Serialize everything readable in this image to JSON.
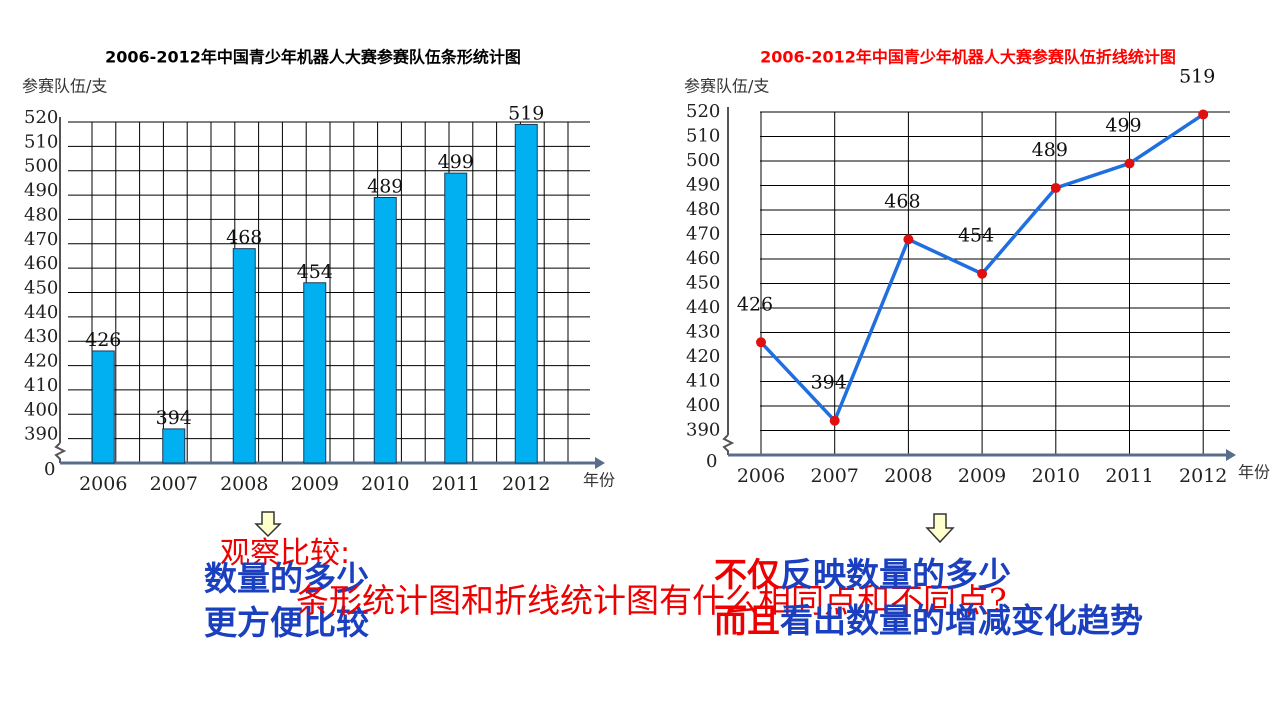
{
  "chart_data": [
    {
      "type": "bar",
      "title": "2006-2012年中国青少年机器人大赛参赛队伍条形统计图",
      "title_color": "#000000",
      "y_label": "参赛队伍/支",
      "x_label": "年份",
      "axis_break_label": "0",
      "categories": [
        "2006",
        "2007",
        "2008",
        "2009",
        "2010",
        "2011",
        "2012"
      ],
      "values": [
        426,
        394,
        468,
        454,
        489,
        499,
        519
      ],
      "color": "#00b0f0",
      "ylim": [
        380,
        520
      ],
      "yticks": [
        390,
        400,
        410,
        420,
        430,
        440,
        450,
        460,
        470,
        480,
        490,
        500,
        510,
        520
      ],
      "grid": true
    },
    {
      "type": "line",
      "title": "2006-2012年中国青少年机器人大赛参赛队伍折线统计图",
      "title_color": "#ff0000",
      "y_label": "参赛队伍/支",
      "x_label": "年份",
      "axis_break_label": "0",
      "categories": [
        "2006",
        "2007",
        "2008",
        "2009",
        "2010",
        "2011",
        "2012"
      ],
      "values": [
        426,
        394,
        468,
        454,
        489,
        499,
        519
      ],
      "color": "#1f6fe0",
      "marker_color": "#e01010",
      "ylim": [
        380,
        520
      ],
      "yticks": [
        390,
        400,
        410,
        420,
        430,
        440,
        450,
        460,
        470,
        480,
        490,
        500,
        510,
        520
      ],
      "grid": true
    }
  ],
  "annotations": {
    "observe": "观察比较:",
    "question": "条形统计图和折线统计图有什么相同点和不同点?",
    "bar_point_1": "数量的多少",
    "bar_point_2": "更方便比较",
    "line_point_1_lead": "不仅",
    "line_point_1_rest": "反映数量的多少",
    "line_point_2_lead": "而且",
    "line_point_2_rest": "看出数量的增减变化趋势"
  }
}
